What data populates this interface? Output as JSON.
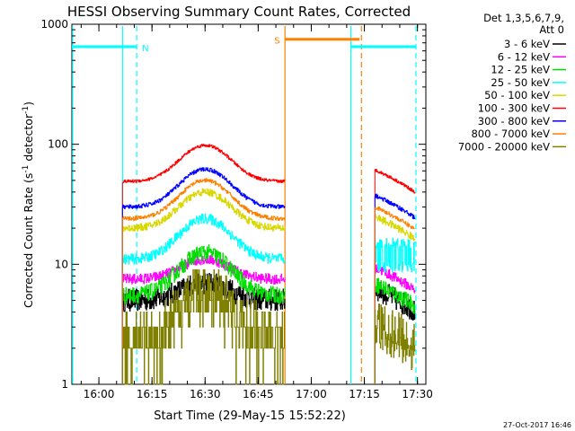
{
  "chart_data": {
    "type": "line",
    "title": "HESSI Observing Summary Count Rates, Corrected",
    "xlabel": "Start Time (29-May-15 15:52:22)",
    "ylabel_parts": [
      "Corrected Count Rate (s",
      "-1",
      " detector",
      "-1",
      ")"
    ],
    "yscale": "log",
    "ylim": [
      1,
      1000
    ],
    "xlim_minutes": [
      0,
      100
    ],
    "xticks": [
      {
        "label": "16:00",
        "minute": 7.63
      },
      {
        "label": "16:15",
        "minute": 22.63
      },
      {
        "label": "16:30",
        "minute": 37.63
      },
      {
        "label": "16:45",
        "minute": 52.63
      },
      {
        "label": "17:00",
        "minute": 67.63
      },
      {
        "label": "17:15",
        "minute": 82.63
      },
      {
        "label": "17:30",
        "minute": 97.63
      }
    ],
    "yticks": [
      {
        "label": "1",
        "value": 1
      },
      {
        "label": "10",
        "value": 10
      },
      {
        "label": "100",
        "value": 100
      },
      {
        "label": "1000",
        "value": 1000
      }
    ],
    "legend": {
      "header": [
        "Det 1,3,5,6,7,9,",
        "Att 0"
      ],
      "position": "right"
    },
    "series": [
      {
        "name": "3 - 6 keV",
        "color": "#000000",
        "base": 5,
        "peak": 7,
        "noise": 0.22
      },
      {
        "name": "6 - 12 keV",
        "color": "#ff00ff",
        "base": 7.5,
        "peak": 11,
        "noise": 0.1
      },
      {
        "name": "12 - 25 keV",
        "color": "#00e000",
        "base": 5.5,
        "peak": 12.5,
        "noise": 0.16
      },
      {
        "name": "25 - 50 keV",
        "color": "#00ffff",
        "base": 11,
        "peak": 24,
        "noise": 0.1
      },
      {
        "name": "50 - 100 keV",
        "color": "#d8d800",
        "base": 20,
        "peak": 40,
        "noise": 0.07
      },
      {
        "name": "100 - 300 keV",
        "color": "#ff0000",
        "base": 49,
        "peak": 98,
        "noise": 0.03
      },
      {
        "name": "300 - 800 keV",
        "color": "#0000ff",
        "base": 30,
        "peak": 62,
        "noise": 0.04
      },
      {
        "name": "800 - 7000 keV",
        "color": "#ff8000",
        "base": 24,
        "peak": 50,
        "noise": 0.04
      },
      {
        "name": "7000 - 20000 keV",
        "color": "#808000",
        "base": 2.5,
        "peak": 6,
        "noise": 0.5
      }
    ],
    "segments": [
      {
        "start_minute": 14.3,
        "end_minute": 60.2
      },
      {
        "start_minute": 85.6,
        "end_minute": 96.9
      }
    ],
    "event_bars": [
      {
        "label": "N",
        "color": "#00ffff",
        "start_minute": 0,
        "end_minute": 18.3,
        "value": 650
      },
      {
        "label": "S",
        "color": "#ff8000",
        "start_minute": 60.2,
        "end_minute": 81.3,
        "value": 750
      },
      {
        "label": "",
        "color": "#00ffff",
        "start_minute": 78.8,
        "end_minute": 97.2,
        "value": 650
      }
    ],
    "vertical_lines": [
      {
        "minute": 0.2,
        "color": "#00ffff",
        "style": "solid"
      },
      {
        "minute": 14.3,
        "color": "#00ffff",
        "style": "solid"
      },
      {
        "minute": 18.3,
        "color": "#00ffff",
        "style": "dashed"
      },
      {
        "minute": 60.2,
        "color": "#ff8000",
        "style": "solid"
      },
      {
        "minute": 78.8,
        "color": "#00ffff",
        "style": "solid"
      },
      {
        "minute": 81.8,
        "color": "#ff8000",
        "style": "dashed"
      },
      {
        "minute": 97.2,
        "color": "#00ffff",
        "style": "dashed"
      }
    ]
  },
  "footer": {
    "timestamp": "27-Oct-2017 16:46"
  }
}
